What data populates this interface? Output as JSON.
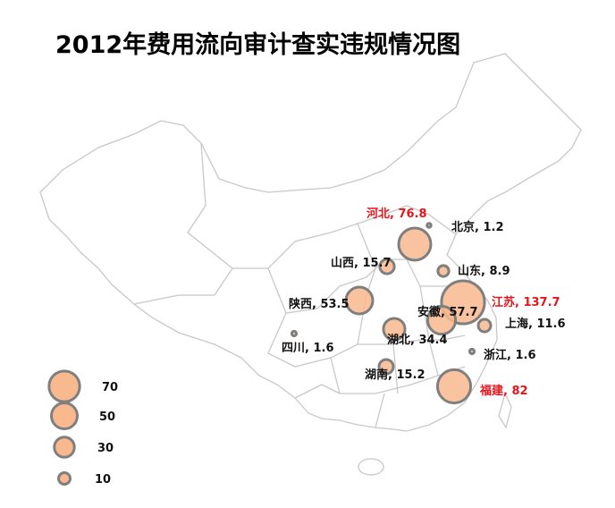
{
  "title": "2012年费用流向审计查实违规情况图",
  "colors": {
    "bubble_fill": "#f9b98e",
    "bubble_stroke": "#7f7f7f",
    "highlight_label": "#e8141b",
    "map_line": "#c8c8c8"
  },
  "provinces": [
    {
      "name": "河北",
      "value": 76.8,
      "label": "河北, 76.8",
      "highlight": true
    },
    {
      "name": "北京",
      "value": 1.2,
      "label": "北京, 1.2",
      "highlight": false
    },
    {
      "name": "山西",
      "value": 15.7,
      "label": "山西, 15.7",
      "highlight": false
    },
    {
      "name": "山东",
      "value": 8.9,
      "label": "山东, 8.9",
      "highlight": false
    },
    {
      "name": "陕西",
      "value": 53.5,
      "label": "陕西, 53.5",
      "highlight": false
    },
    {
      "name": "江苏",
      "value": 137.7,
      "label": "江苏, 137.7",
      "highlight": true
    },
    {
      "name": "安徽",
      "value": 57.7,
      "label": "安徽, 57.7",
      "highlight": false
    },
    {
      "name": "上海",
      "value": 11.6,
      "label": "上海, 11.6",
      "highlight": false
    },
    {
      "name": "湖北",
      "value": 34.4,
      "label": "湖北, 34.4",
      "highlight": false
    },
    {
      "name": "四川",
      "value": 1.6,
      "label": "四川, 1.6",
      "highlight": false
    },
    {
      "name": "浙江",
      "value": 1.6,
      "label": "浙江, 1.6",
      "highlight": false
    },
    {
      "name": "湖南",
      "value": 15.2,
      "label": "湖南, 15.2",
      "highlight": false
    },
    {
      "name": "福建",
      "value": 82,
      "label": "福建, 82",
      "highlight": true
    }
  ],
  "legend": [
    {
      "value": 70,
      "label": "70"
    },
    {
      "value": 50,
      "label": "50"
    },
    {
      "value": 30,
      "label": "30"
    },
    {
      "value": 10,
      "label": "10"
    }
  ]
}
